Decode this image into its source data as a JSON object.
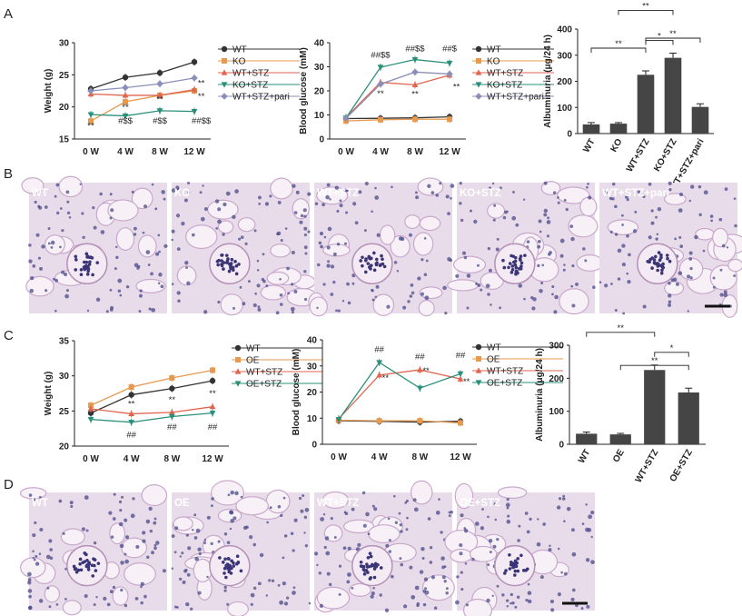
{
  "panels": [
    {
      "letter": "A"
    },
    {
      "letter": "B"
    },
    {
      "letter": "C"
    },
    {
      "letter": "D"
    }
  ],
  "colors": {
    "WT": "#333333",
    "KO": "#e59a4f",
    "WT+STZ": "#e0654e",
    "KO+STZ": "#2a8f7a",
    "WT+STZ+pari": "#8b8fb8",
    "OE": "#e59a4f",
    "OE+STZ": "#2a8f7a",
    "bar": "#454545",
    "tissue": "#e9dcea",
    "nucleus": "#4a4a8a"
  },
  "chart_data": [
    {
      "id": "A1",
      "type": "line",
      "ylabel": "Weight (g)",
      "ylim": [
        15,
        30
      ],
      "yticks": [
        15,
        20,
        25,
        30
      ],
      "x": [
        "0 W",
        "4 W",
        "8 W",
        "12 W"
      ],
      "series": [
        {
          "name": "WT",
          "values": [
            22.8,
            24.6,
            25.3,
            27.0
          ]
        },
        {
          "name": "KO",
          "values": [
            17.8,
            20.8,
            21.8,
            22.5
          ]
        },
        {
          "name": "WT+STZ",
          "values": [
            22.0,
            21.8,
            21.8,
            22.7
          ]
        },
        {
          "name": "KO+STZ",
          "values": [
            18.8,
            18.6,
            19.4,
            19.3
          ]
        },
        {
          "name": "WT+STZ+pari",
          "values": [
            22.5,
            23.0,
            23.6,
            24.5
          ]
        }
      ],
      "annotations": [
        {
          "text": "**",
          "x": 0,
          "y": 16.6
        },
        {
          "text": "**",
          "x": 1,
          "y": 19.5
        },
        {
          "text": "#$$",
          "x": 1,
          "y": 17.4
        },
        {
          "text": "**",
          "x": 2,
          "y": 20.7
        },
        {
          "text": "#$$",
          "x": 2,
          "y": 17.4
        },
        {
          "text": "**",
          "x": 3.2,
          "y": 23.3
        },
        {
          "text": "**",
          "x": 3.2,
          "y": 21.2
        },
        {
          "text": "##$$",
          "x": 3.2,
          "y": 17.4
        }
      ]
    },
    {
      "id": "A2",
      "type": "line",
      "ylabel": "Blood glucose (mM)",
      "ylim": [
        0,
        40
      ],
      "yticks": [
        0,
        10,
        20,
        30,
        40
      ],
      "x": [
        "0 W",
        "4 W",
        "8 W",
        "12 W"
      ],
      "series": [
        {
          "name": "WT",
          "values": [
            8.5,
            8.6,
            8.8,
            9.2
          ]
        },
        {
          "name": "KO",
          "values": [
            7.5,
            8.0,
            8.2,
            8.2
          ]
        },
        {
          "name": "WT+STZ",
          "values": [
            9.0,
            23.5,
            22.5,
            26.5
          ]
        },
        {
          "name": "KO+STZ",
          "values": [
            8.8,
            29.8,
            33.0,
            31.5
          ]
        },
        {
          "name": "WT+STZ+pari",
          "values": [
            8.6,
            22.8,
            27.8,
            27.0
          ]
        }
      ],
      "annotations": [
        {
          "text": "##$$",
          "x": 1,
          "y": 33.8
        },
        {
          "text": "**",
          "x": 1,
          "y": 17.8
        },
        {
          "text": "##$$",
          "x": 2,
          "y": 36.5
        },
        {
          "text": "**",
          "x": 2,
          "y": 17.5
        },
        {
          "text": "##$",
          "x": 3,
          "y": 36.5
        },
        {
          "text": "**",
          "x": 3.2,
          "y": 20.5
        }
      ]
    },
    {
      "id": "A3",
      "type": "bar",
      "ylabel": "Albuminuria (μg/24 h)",
      "ylim": [
        0,
        400
      ],
      "yticks": [
        0,
        100,
        200,
        300,
        400
      ],
      "categories": [
        "WT",
        "KO",
        "WT+STZ",
        "KO+STZ",
        "WT+STZ+pari"
      ],
      "values": [
        35,
        38,
        225,
        290,
        102
      ],
      "errors": [
        7,
        4,
        15,
        18,
        12
      ],
      "brackets": [
        {
          "from": 0,
          "to": 2,
          "text": "**"
        },
        {
          "from": 1,
          "to": 3,
          "text": "**"
        },
        {
          "from": 2,
          "to": 3,
          "text": "*"
        },
        {
          "from": 2,
          "to": 4,
          "text": "**"
        }
      ]
    },
    {
      "id": "C1",
      "type": "line",
      "ylabel": "Weight (g)",
      "ylim": [
        20,
        35
      ],
      "yticks": [
        20,
        25,
        30,
        35
      ],
      "x": [
        "0 W",
        "4 W",
        "8 W",
        "12 W"
      ],
      "series": [
        {
          "name": "WT",
          "values": [
            24.7,
            27.3,
            28.2,
            29.3
          ]
        },
        {
          "name": "OE",
          "values": [
            25.8,
            28.4,
            29.7,
            30.8
          ]
        },
        {
          "name": "WT+STZ",
          "values": [
            25.3,
            24.6,
            24.8,
            25.6
          ]
        },
        {
          "name": "OE+STZ",
          "values": [
            23.8,
            23.4,
            24.2,
            24.7
          ]
        }
      ],
      "annotations": [
        {
          "text": "**",
          "x": 1,
          "y": 25.6
        },
        {
          "text": "##",
          "x": 1,
          "y": 21.2
        },
        {
          "text": "**",
          "x": 2,
          "y": 26.2
        },
        {
          "text": "##",
          "x": 2,
          "y": 22.3
        },
        {
          "text": "**",
          "x": 3,
          "y": 27.1
        },
        {
          "text": "##",
          "x": 3,
          "y": 22.3
        }
      ]
    },
    {
      "id": "C2",
      "type": "line",
      "ylabel": "Blood glucose (mM)",
      "ylim": [
        0,
        40
      ],
      "yticks": [
        0,
        10,
        20,
        30,
        40
      ],
      "x": [
        "0 W",
        "4 W",
        "8 W",
        "12 W"
      ],
      "series": [
        {
          "name": "WT",
          "values": [
            9.0,
            8.8,
            8.5,
            8.8
          ]
        },
        {
          "name": "OE",
          "values": [
            9.2,
            9.0,
            9.0,
            8.2
          ]
        },
        {
          "name": "WT+STZ",
          "values": [
            9.8,
            26.5,
            28.5,
            25.0
          ]
        },
        {
          "name": "OE+STZ",
          "values": [
            9.5,
            31.3,
            21.5,
            27.0
          ]
        }
      ],
      "annotations": [
        {
          "text": "##",
          "x": 1,
          "y": 35.3
        },
        {
          "text": "**",
          "x": 1.15,
          "y": 24.3
        },
        {
          "text": "##",
          "x": 2,
          "y": 32.6
        },
        {
          "text": "**",
          "x": 2.15,
          "y": 27.2
        },
        {
          "text": "##",
          "x": 3,
          "y": 33.0
        },
        {
          "text": "**",
          "x": 3.15,
          "y": 23.0
        }
      ]
    },
    {
      "id": "C3",
      "type": "bar",
      "ylabel": "Albuminuria (μg/24 h)",
      "ylim": [
        0,
        300
      ],
      "yticks": [
        0,
        100,
        200,
        300
      ],
      "categories": [
        "WT",
        "OE",
        "WT+STZ",
        "OE+STZ"
      ],
      "values": [
        32,
        30,
        225,
        157
      ],
      "errors": [
        5,
        3,
        15,
        13
      ],
      "brackets": [
        {
          "from": 0,
          "to": 2,
          "text": "**"
        },
        {
          "from": 1,
          "to": 3,
          "text": "**"
        },
        {
          "from": 2,
          "to": 3,
          "text": "*"
        }
      ]
    }
  ],
  "histology": {
    "B": [
      "WT",
      "KO",
      "WT+STZ",
      "KO+STZ",
      "WT+STZ+pari"
    ],
    "D": [
      "WT",
      "OE",
      "WT+STZ",
      "OE+STZ"
    ]
  }
}
